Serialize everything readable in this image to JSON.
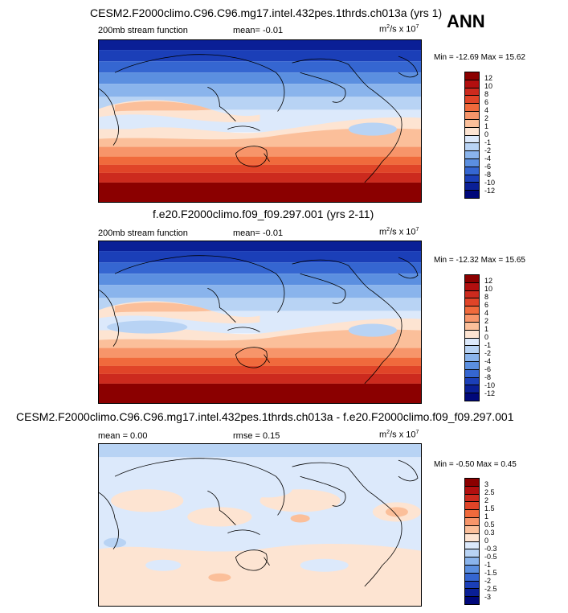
{
  "season": "ANN",
  "panels": [
    {
      "title": "CESM2.F2000climo.C96.C96.mg17.intel.432pes.1thrds.ch013a (yrs 1)",
      "field": "200mb stream function",
      "stat1": "mean=  -0.01",
      "stat2": "",
      "units_base": "m",
      "units_exp": "2",
      "units_mid": "/s x 10",
      "units_exp2": "7",
      "minmax": "Min = -12.69 Max =  15.62",
      "levels": [
        "12",
        "10",
        "8",
        "6",
        "4",
        "2",
        "1",
        "0",
        "-1",
        "-2",
        "-4",
        "-6",
        "-8",
        "-10",
        "-12"
      ],
      "colors": [
        "#8b0000",
        "#b20f0f",
        "#cc2a1e",
        "#e04428",
        "#f06a3c",
        "#f7956a",
        "#fbbf9a",
        "#fde4d2",
        "#dce9fb",
        "#b8d3f4",
        "#8ab4ec",
        "#5b8fe0",
        "#3566d1",
        "#1b3fb8",
        "#0a1f96",
        "#00087a"
      ]
    },
    {
      "title": "f.e20.F2000climo.f09_f09.297.001 (yrs 2-11)",
      "field": "200mb stream function",
      "stat1": "mean=  -0.01",
      "stat2": "",
      "units_base": "m",
      "units_exp": "2",
      "units_mid": "/s x 10",
      "units_exp2": "7",
      "minmax": "Min = -12.32 Max =  15.65",
      "levels": [
        "12",
        "10",
        "8",
        "6",
        "4",
        "2",
        "1",
        "0",
        "-1",
        "-2",
        "-4",
        "-6",
        "-8",
        "-10",
        "-12"
      ],
      "colors": [
        "#8b0000",
        "#b20f0f",
        "#cc2a1e",
        "#e04428",
        "#f06a3c",
        "#f7956a",
        "#fbbf9a",
        "#fde4d2",
        "#dce9fb",
        "#b8d3f4",
        "#8ab4ec",
        "#5b8fe0",
        "#3566d1",
        "#1b3fb8",
        "#0a1f96",
        "#00087a"
      ]
    },
    {
      "title": "CESM2.F2000climo.C96.C96.mg17.intel.432pes.1thrds.ch013a - f.e20.F2000climo.f09_f09.297.001",
      "field": "",
      "stat1": "mean =  0.00",
      "stat2": "rmse =  0.15",
      "units_base": "m",
      "units_exp": "2",
      "units_mid": "/s x 10",
      "units_exp2": "7",
      "minmax": "Min =  -0.50 Max =  0.45",
      "levels": [
        "3",
        "2.5",
        "2",
        "1.5",
        "1",
        "0.5",
        "0.3",
        "0",
        "-0.3",
        "-0.5",
        "-1",
        "-1.5",
        "-2",
        "-2.5",
        "-3"
      ],
      "colors": [
        "#8b0000",
        "#b20f0f",
        "#cc2a1e",
        "#e04428",
        "#f06a3c",
        "#f7956a",
        "#fbbf9a",
        "#fde4d2",
        "#dce9fb",
        "#b8d3f4",
        "#8ab4ec",
        "#5b8fe0",
        "#3566d1",
        "#1b3fb8",
        "#0a1f96",
        "#00087a"
      ]
    }
  ]
}
